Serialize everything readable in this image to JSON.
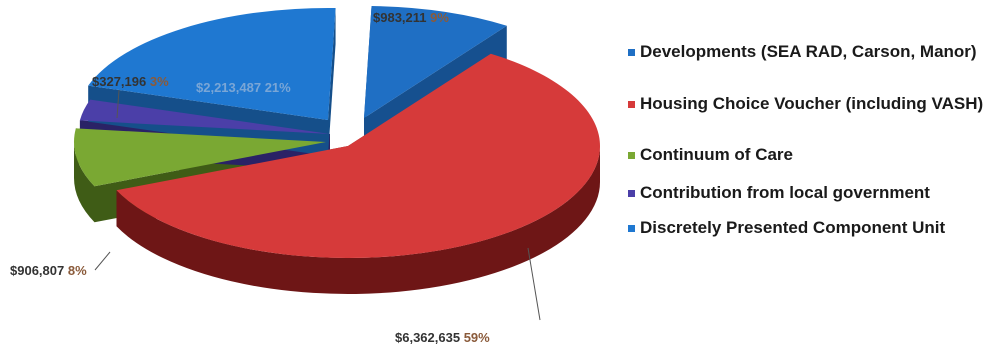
{
  "chart_data": {
    "type": "pie",
    "title": "",
    "legend_position": "right",
    "slices": [
      {
        "label": "Developments (SEA RAD, Carson, Manor)",
        "value": 983211,
        "value_label": "$983,211",
        "percent_label": "9%",
        "color": "#1f6fc4",
        "side": "#16508f"
      },
      {
        "label": "Housing Choice Voucher (including VASH)",
        "value": 6362635,
        "value_label": "$6,362,635",
        "percent_label": "59%",
        "color": "#d63a3a",
        "side": "#6e1616"
      },
      {
        "label": "Continuum of Care",
        "value": 906807,
        "value_label": "$906,807",
        "percent_label": "8%",
        "color": "#7aa833",
        "side": "#3f5c16"
      },
      {
        "label": "Contribution from local government",
        "value": 327196,
        "value_label": "$327,196",
        "percent_label": "3%",
        "color": "#4b3fa8",
        "side": "#2a2266"
      },
      {
        "label": "Discretely Presented Component Unit",
        "value": 2213487,
        "value_label": "$2,213,487",
        "percent_label": "21%",
        "color": "#1f78d1",
        "side": "#154f8a"
      }
    ]
  }
}
